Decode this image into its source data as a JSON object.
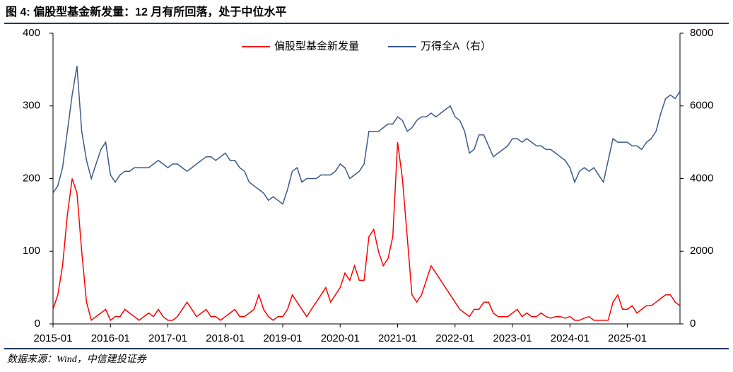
{
  "chart_data": {
    "type": "line",
    "title": "图 4: 偏股型基金新发量：12 月有所回落，处于中位水平",
    "source": "数据来源：Wind，中信建投证券",
    "x": [
      "2015-01",
      "2015-02",
      "2015-03",
      "2015-04",
      "2015-05",
      "2015-06",
      "2015-07",
      "2015-08",
      "2015-09",
      "2015-10",
      "2015-11",
      "2015-12",
      "2016-01",
      "2016-02",
      "2016-03",
      "2016-04",
      "2016-05",
      "2016-06",
      "2016-07",
      "2016-08",
      "2016-09",
      "2016-10",
      "2016-11",
      "2016-12",
      "2017-01",
      "2017-02",
      "2017-03",
      "2017-04",
      "2017-05",
      "2017-06",
      "2017-07",
      "2017-08",
      "2017-09",
      "2017-10",
      "2017-11",
      "2017-12",
      "2018-01",
      "2018-02",
      "2018-03",
      "2018-04",
      "2018-05",
      "2018-06",
      "2018-07",
      "2018-08",
      "2018-09",
      "2018-10",
      "2018-11",
      "2018-12",
      "2019-01",
      "2019-02",
      "2019-03",
      "2019-04",
      "2019-05",
      "2019-06",
      "2019-07",
      "2019-08",
      "2019-09",
      "2019-10",
      "2019-11",
      "2019-12",
      "2020-01",
      "2020-02",
      "2020-03",
      "2020-04",
      "2020-05",
      "2020-06",
      "2020-07",
      "2020-08",
      "2020-09",
      "2020-10",
      "2020-11",
      "2020-12",
      "2021-01",
      "2021-02",
      "2021-03",
      "2021-04",
      "2021-05",
      "2021-06",
      "2021-07",
      "2021-08",
      "2021-09",
      "2021-10",
      "2021-11",
      "2021-12",
      "2022-01",
      "2022-02",
      "2022-03",
      "2022-04",
      "2022-05",
      "2022-06",
      "2022-07",
      "2022-08",
      "2022-09",
      "2022-10",
      "2022-11",
      "2022-12",
      "2023-01",
      "2023-02",
      "2023-03",
      "2023-04",
      "2023-05",
      "2023-06",
      "2023-07",
      "2023-08",
      "2023-09",
      "2023-10",
      "2023-11",
      "2023-12",
      "2024-01",
      "2024-02",
      "2024-03",
      "2024-04",
      "2024-05",
      "2024-06",
      "2024-07",
      "2024-08",
      "2024-09",
      "2024-10",
      "2024-11",
      "2024-12",
      "2025-01",
      "2025-02",
      "2025-03",
      "2025-04",
      "2025-05",
      "2025-06",
      "2025-07",
      "2025-08",
      "2025-09",
      "2025-10",
      "2025-11",
      "2025-12"
    ],
    "xticks": [
      "2015-01",
      "2016-01",
      "2017-01",
      "2018-01",
      "2019-01",
      "2020-01",
      "2021-01",
      "2022-01",
      "2023-01",
      "2024-01",
      "2025-01"
    ],
    "series": [
      {
        "name": "偏股型基金新发量",
        "color": "#ff0000",
        "values": [
          20,
          40,
          80,
          150,
          200,
          180,
          100,
          30,
          5,
          10,
          15,
          20,
          5,
          10,
          10,
          20,
          15,
          10,
          5,
          10,
          15,
          10,
          20,
          10,
          5,
          5,
          10,
          20,
          30,
          20,
          10,
          15,
          20,
          10,
          10,
          5,
          10,
          15,
          20,
          10,
          10,
          15,
          20,
          40,
          20,
          10,
          5,
          10,
          10,
          20,
          40,
          30,
          20,
          10,
          20,
          30,
          40,
          50,
          30,
          40,
          50,
          70,
          60,
          80,
          60,
          60,
          120,
          130,
          100,
          80,
          90,
          120,
          250,
          200,
          120,
          40,
          30,
          40,
          60,
          80,
          70,
          60,
          50,
          40,
          30,
          20,
          15,
          10,
          20,
          20,
          30,
          30,
          15,
          10,
          10,
          10,
          15,
          20,
          10,
          15,
          10,
          10,
          15,
          10,
          8,
          10,
          10,
          8,
          10,
          5,
          5,
          8,
          10,
          5,
          5,
          5,
          5,
          30,
          40,
          20,
          20,
          25,
          15,
          20,
          25,
          25,
          30,
          35,
          40,
          40,
          30,
          25
        ]
      },
      {
        "name": "万得全A（右）",
        "color": "#3b5a8a",
        "axis": "y2",
        "values": [
          3600,
          3800,
          4300,
          5300,
          6300,
          7100,
          5300,
          4500,
          4000,
          4400,
          4800,
          5000,
          4100,
          3900,
          4100,
          4200,
          4200,
          4300,
          4300,
          4300,
          4300,
          4400,
          4500,
          4400,
          4300,
          4400,
          4400,
          4300,
          4200,
          4300,
          4400,
          4500,
          4600,
          4600,
          4500,
          4600,
          4700,
          4500,
          4500,
          4300,
          4200,
          3900,
          3800,
          3700,
          3600,
          3400,
          3500,
          3400,
          3300,
          3700,
          4200,
          4300,
          3900,
          4000,
          4000,
          4000,
          4100,
          4100,
          4100,
          4200,
          4400,
          4300,
          4000,
          4100,
          4200,
          4400,
          5300,
          5300,
          5300,
          5400,
          5500,
          5500,
          5700,
          5600,
          5300,
          5400,
          5600,
          5700,
          5700,
          5800,
          5700,
          5800,
          5900,
          6000,
          5700,
          5600,
          5300,
          4700,
          4800,
          5200,
          5200,
          4900,
          4600,
          4700,
          4800,
          4900,
          5100,
          5100,
          5000,
          5100,
          5000,
          4900,
          4900,
          4800,
          4800,
          4700,
          4600,
          4500,
          4300,
          3900,
          4200,
          4300,
          4200,
          4300,
          4100,
          3900,
          4500,
          5100,
          5000,
          5000,
          5000,
          4900,
          4900,
          4800,
          5000,
          5100,
          5300,
          5800,
          6200,
          6300,
          6200,
          6400
        ]
      }
    ],
    "ylim": [
      0,
      400
    ],
    "yticks": [
      0,
      100,
      200,
      300,
      400
    ],
    "y2lim": [
      0,
      8000
    ],
    "y2ticks": [
      0,
      2000,
      4000,
      6000,
      8000
    ],
    "grid": false,
    "legend": "top"
  }
}
